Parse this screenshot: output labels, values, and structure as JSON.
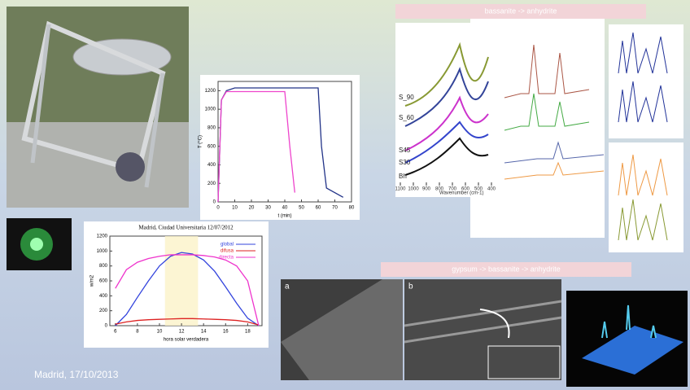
{
  "slide": {
    "footer": "Madrid, 17/10/2013",
    "banner_top": "bassanite -> anhydrite",
    "banner_bottom": "gypsum -> bassanite -> anhydrite",
    "sem_labels": [
      "a",
      "b"
    ]
  },
  "spectra_panel": {
    "labels": [
      "S_90",
      "S_60",
      "S45",
      "S30",
      "Bh"
    ],
    "xticks": [
      1100,
      1000,
      900,
      800,
      700,
      600,
      500,
      400
    ],
    "xlim": [
      1100,
      400
    ],
    "xlabel": "Wavenumber (cm-1)"
  },
  "chart_data": [
    {
      "type": "line",
      "title": "Madrid, Ciudad Universitaria 12/07/2012",
      "ylabel": "w/m2",
      "xlabel": "hora solar verdadera",
      "xlim": [
        5.5,
        19.3
      ],
      "ylim": [
        0,
        1200
      ],
      "xticks": [
        6,
        8,
        10,
        12,
        14,
        16,
        18
      ],
      "yticks": [
        0,
        200,
        400,
        600,
        800,
        1000,
        1200
      ],
      "legend": "upper right",
      "series": [
        {
          "name": "global",
          "color": "#3344dd",
          "x": [
            6,
            7,
            8,
            9,
            10,
            11,
            12,
            13,
            14,
            15,
            16,
            17,
            18,
            19
          ],
          "values": [
            0,
            150,
            380,
            600,
            800,
            930,
            980,
            960,
            880,
            730,
            520,
            300,
            100,
            0
          ]
        },
        {
          "name": "difusa",
          "color": "#dd2222",
          "x": [
            6,
            7,
            8,
            9,
            10,
            11,
            12,
            13,
            14,
            15,
            16,
            17,
            18,
            19
          ],
          "values": [
            20,
            50,
            70,
            80,
            85,
            90,
            95,
            95,
            90,
            85,
            80,
            70,
            50,
            10
          ]
        },
        {
          "name": "directa",
          "color": "#ee33cc",
          "x": [
            6,
            7,
            8,
            9,
            10,
            11,
            12,
            13,
            14,
            15,
            16,
            17,
            18,
            19
          ],
          "values": [
            500,
            750,
            850,
            900,
            930,
            950,
            950,
            950,
            940,
            920,
            880,
            800,
            600,
            0
          ]
        }
      ]
    },
    {
      "type": "line",
      "ylabel": "T (°C)",
      "xlabel": "t (min)",
      "xlim": [
        0,
        80
      ],
      "ylim": [
        0,
        1300
      ],
      "xticks": [
        0,
        10,
        20,
        30,
        40,
        50,
        60,
        70,
        80
      ],
      "yticks": [
        0,
        200,
        400,
        600,
        800,
        1000,
        1200
      ],
      "series": [
        {
          "color": "#223388",
          "x": [
            0,
            2,
            5,
            10,
            60,
            62,
            65,
            75
          ],
          "values": [
            0,
            1100,
            1200,
            1230,
            1230,
            600,
            150,
            50
          ]
        },
        {
          "color": "#ee44cc",
          "x": [
            0,
            2,
            5,
            40,
            43,
            46
          ],
          "values": [
            0,
            1100,
            1190,
            1190,
            600,
            100
          ]
        }
      ]
    }
  ]
}
